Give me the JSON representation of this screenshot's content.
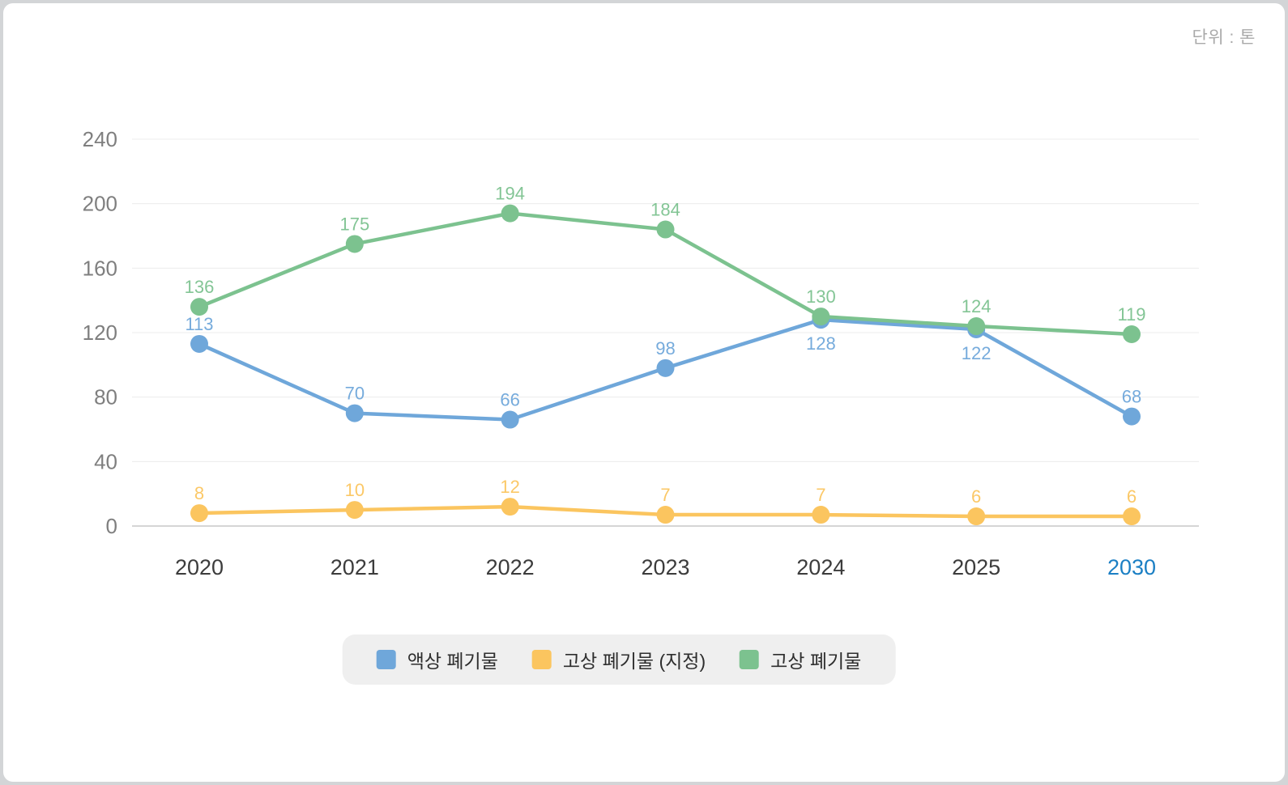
{
  "unit_label": "단위 : 톤",
  "chart_data": {
    "type": "line",
    "title": "",
    "unit": "단위 : 톤",
    "categories": [
      "2020",
      "2021",
      "2022",
      "2023",
      "2024",
      "2025",
      "2030"
    ],
    "highlight_category": "2030",
    "highlight_color": "#1b7fc4",
    "series": [
      {
        "name": "액상 폐기물",
        "color": "#6fa7da",
        "values": [
          113,
          70,
          66,
          98,
          128,
          122,
          68
        ]
      },
      {
        "name": "고상 폐기물 (지정)",
        "color": "#fbc55f",
        "values": [
          8,
          10,
          12,
          7,
          7,
          6,
          6
        ]
      },
      {
        "name": "고상 폐기물",
        "color": "#7cc28f",
        "values": [
          136,
          175,
          194,
          184,
          130,
          124,
          119
        ]
      }
    ],
    "ylim": [
      0,
      240
    ],
    "yticks": [
      0,
      40,
      80,
      120,
      160,
      200,
      240
    ],
    "grid": true,
    "legend_position": "bottom",
    "axis_label_color": "#7f7f7f",
    "x_label_color": "#3c3c3c",
    "grid_color": "#ececec",
    "baseline_color": "#c7c7c7"
  }
}
